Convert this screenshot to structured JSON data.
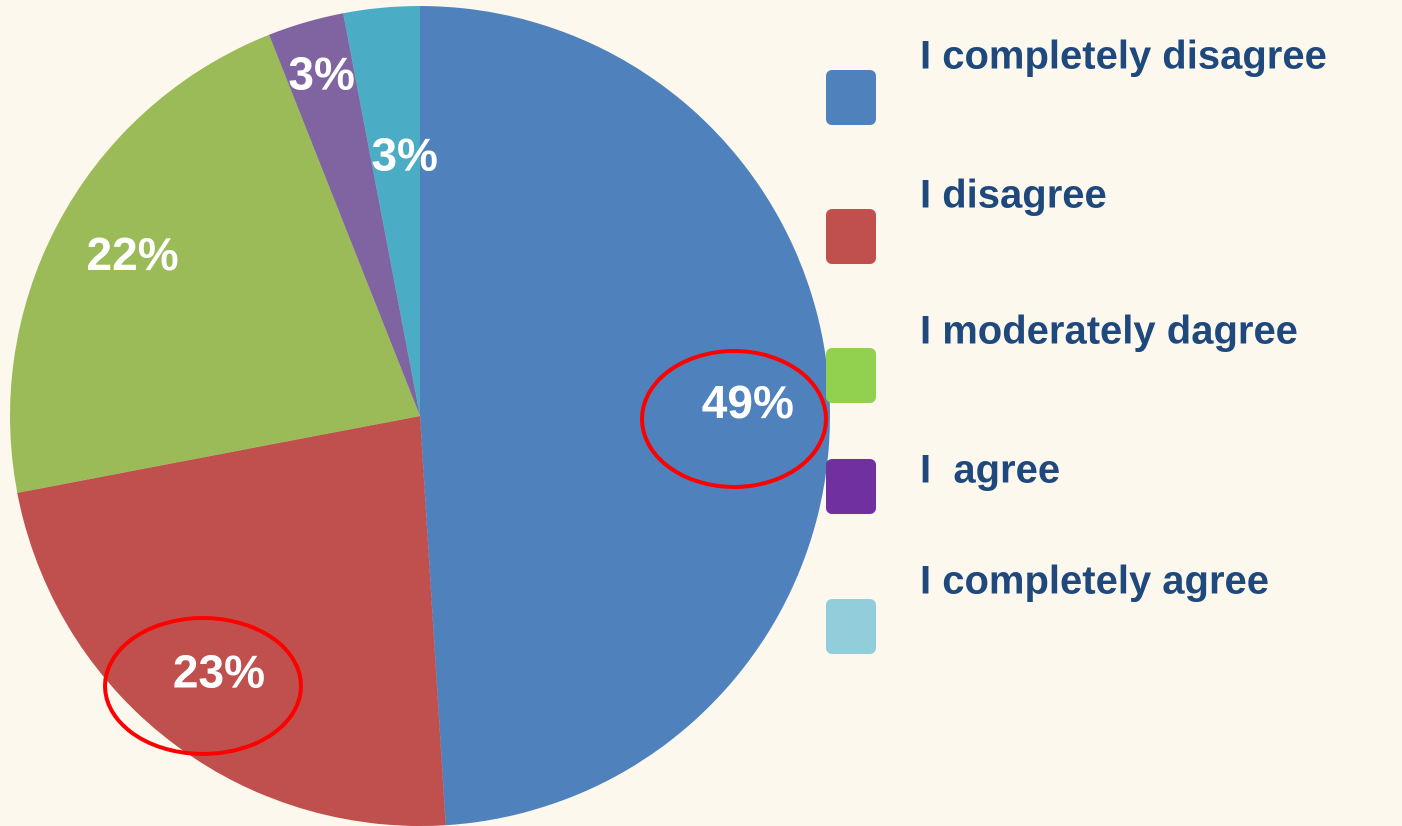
{
  "chart_data": {
    "type": "pie",
    "categories": [
      "I completely disagree",
      "I disagree",
      "I moderately dagree",
      "I  agree",
      "I completely agree"
    ],
    "values": [
      49,
      23,
      22,
      3,
      3
    ],
    "value_labels": [
      "49%",
      "23%",
      "22%",
      "3%",
      "3%"
    ],
    "colors": [
      "#4f81bd",
      "#c0504d",
      "#9bbb59",
      "#8064a2",
      "#4bacc6"
    ],
    "legend_colors": [
      "#4f81bd",
      "#c0504d",
      "#92d050",
      "#7030a0",
      "#92cddc"
    ],
    "legend": "right"
  }
}
